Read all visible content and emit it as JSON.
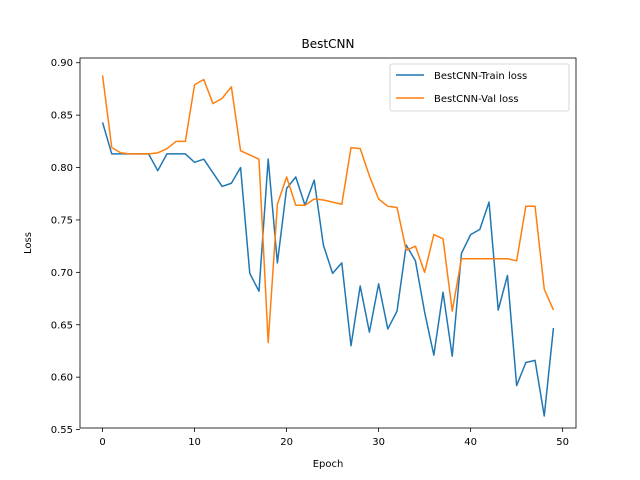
{
  "chart_data": {
    "type": "line",
    "title": "BestCNN",
    "xlabel": "Epoch",
    "ylabel": "Loss",
    "xlim": [
      -2.45,
      51.45
    ],
    "ylim": [
      0.5515,
      0.9045
    ],
    "xticks": [
      0,
      10,
      20,
      30,
      40,
      50
    ],
    "xtick_labels": [
      "0",
      "10",
      "20",
      "30",
      "40",
      "50"
    ],
    "yticks": [
      0.55,
      0.6,
      0.65,
      0.7,
      0.75,
      0.8,
      0.85,
      0.9
    ],
    "ytick_labels": [
      "0.55",
      "0.60",
      "0.65",
      "0.70",
      "0.75",
      "0.80",
      "0.85",
      "0.90"
    ],
    "grid": false,
    "legend_position": "top-right",
    "x": [
      0,
      1,
      2,
      3,
      4,
      5,
      6,
      7,
      8,
      9,
      10,
      11,
      12,
      13,
      14,
      15,
      16,
      17,
      18,
      19,
      20,
      21,
      22,
      23,
      24,
      25,
      26,
      27,
      28,
      29,
      30,
      31,
      32,
      33,
      34,
      35,
      36,
      37,
      38,
      39,
      40,
      41,
      42,
      43,
      44,
      45,
      46,
      47,
      48,
      49
    ],
    "series": [
      {
        "name": "BestCNN-Train loss",
        "color": "#1f77b4",
        "values": [
          0.843,
          0.813,
          0.813,
          0.813,
          0.813,
          0.813,
          0.797,
          0.813,
          0.813,
          0.813,
          0.805,
          0.808,
          0.795,
          0.782,
          0.785,
          0.8,
          0.699,
          0.682,
          0.808,
          0.709,
          0.78,
          0.791,
          0.764,
          0.788,
          0.726,
          0.699,
          0.709,
          0.63,
          0.687,
          0.643,
          0.689,
          0.646,
          0.663,
          0.726,
          0.711,
          0.662,
          0.621,
          0.681,
          0.62,
          0.718,
          0.736,
          0.741,
          0.767,
          0.664,
          0.697,
          0.592,
          0.614,
          0.616,
          0.563,
          0.647
        ]
      },
      {
        "name": "BestCNN-Val loss",
        "color": "#ff7f0e",
        "values": [
          0.888,
          0.819,
          0.814,
          0.813,
          0.813,
          0.813,
          0.814,
          0.818,
          0.825,
          0.825,
          0.879,
          0.884,
          0.861,
          0.866,
          0.877,
          0.816,
          0.812,
          0.808,
          0.633,
          0.765,
          0.791,
          0.764,
          0.764,
          0.77,
          0.769,
          0.767,
          0.765,
          0.819,
          0.818,
          0.792,
          0.77,
          0.763,
          0.762,
          0.721,
          0.725,
          0.7,
          0.736,
          0.732,
          0.663,
          0.713,
          0.713,
          0.713,
          0.713,
          0.713,
          0.713,
          0.711,
          0.763,
          0.763,
          0.684,
          0.664
        ]
      }
    ]
  }
}
